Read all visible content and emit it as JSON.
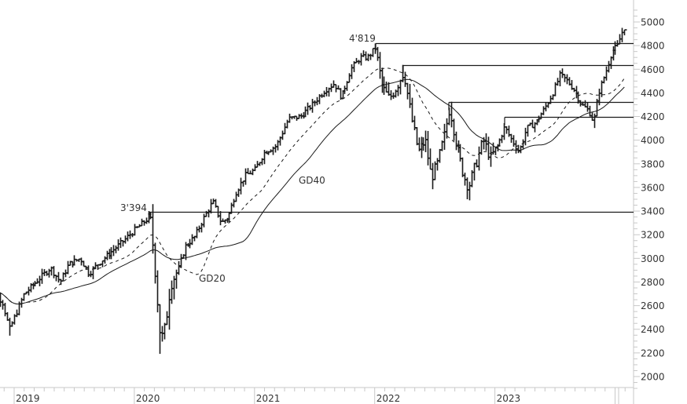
{
  "chart_data": {
    "type": "line",
    "subtype": "ohlc-bar",
    "title": "",
    "xlabel": "",
    "ylabel": "",
    "ylim": [
      1900,
      5100
    ],
    "y_ticks": [
      2000,
      2200,
      2400,
      2600,
      2800,
      3000,
      3200,
      3400,
      3600,
      3800,
      4000,
      4200,
      4400,
      4600,
      4800,
      5000
    ],
    "x_ticks": [
      "2019",
      "2020",
      "2021",
      "2022",
      "2023"
    ],
    "grid": false,
    "legend": null,
    "series": [
      {
        "name": "Price (weekly OHLC bars)",
        "style": "bar",
        "color": "#1a1a1a"
      },
      {
        "name": "GD20",
        "style": "dashed",
        "color": "#1a1a1a"
      },
      {
        "name": "GD40",
        "style": "solid",
        "color": "#1a1a1a"
      }
    ],
    "annotations": [
      {
        "text": "4'819",
        "value": 4819,
        "date_approx": "2022-01"
      },
      {
        "text": "3'394",
        "value": 3394,
        "date_approx": "2020-02"
      },
      {
        "text": "GD40",
        "label_for": "GD40"
      },
      {
        "text": "GD20",
        "label_for": "GD20"
      }
    ],
    "horizontal_levels": [
      {
        "value": 4819,
        "from": "2022-01"
      },
      {
        "value": 4637,
        "from": "2022-03"
      },
      {
        "value": 4325,
        "from": "2022-08"
      },
      {
        "value": 4195,
        "from": "2023-02"
      },
      {
        "value": 3394,
        "from": "2020-02"
      }
    ],
    "key_points": [
      {
        "date": "2018-10",
        "close": 2780
      },
      {
        "date": "2018-12",
        "low": 2346
      },
      {
        "date": "2019-04",
        "close": 2930
      },
      {
        "date": "2019-07",
        "close": 3000
      },
      {
        "date": "2020-02",
        "high": 3394
      },
      {
        "date": "2020-03",
        "low": 2192
      },
      {
        "date": "2020-06",
        "close": 3100
      },
      {
        "date": "2020-09",
        "close": 3580
      },
      {
        "date": "2020-12",
        "close": 3750
      },
      {
        "date": "2021-06",
        "close": 4300
      },
      {
        "date": "2021-09",
        "close": 4530
      },
      {
        "date": "2022-01",
        "high": 4819
      },
      {
        "date": "2022-03",
        "high": 4637
      },
      {
        "date": "2022-06",
        "low": 3640
      },
      {
        "date": "2022-08",
        "high": 4325
      },
      {
        "date": "2022-10",
        "low": 3491
      },
      {
        "date": "2023-02",
        "high": 4195
      },
      {
        "date": "2023-07",
        "high": 4607
      },
      {
        "date": "2023-10",
        "low": 4103
      },
      {
        "date": "2023-12",
        "close": 4990
      }
    ]
  },
  "axis": {
    "y_labels": [
      "5000",
      "4800",
      "4600",
      "4400",
      "4200",
      "4000",
      "3800",
      "3600",
      "3400",
      "3200",
      "3000",
      "2800",
      "2600",
      "2400",
      "2200",
      "2000"
    ],
    "x_labels": [
      "2019",
      "2020",
      "2021",
      "2022",
      "2023"
    ]
  },
  "labels": {
    "peak_2022": "4'819",
    "peak_2020": "3'394",
    "gd40": "GD40",
    "gd20": "GD20"
  }
}
